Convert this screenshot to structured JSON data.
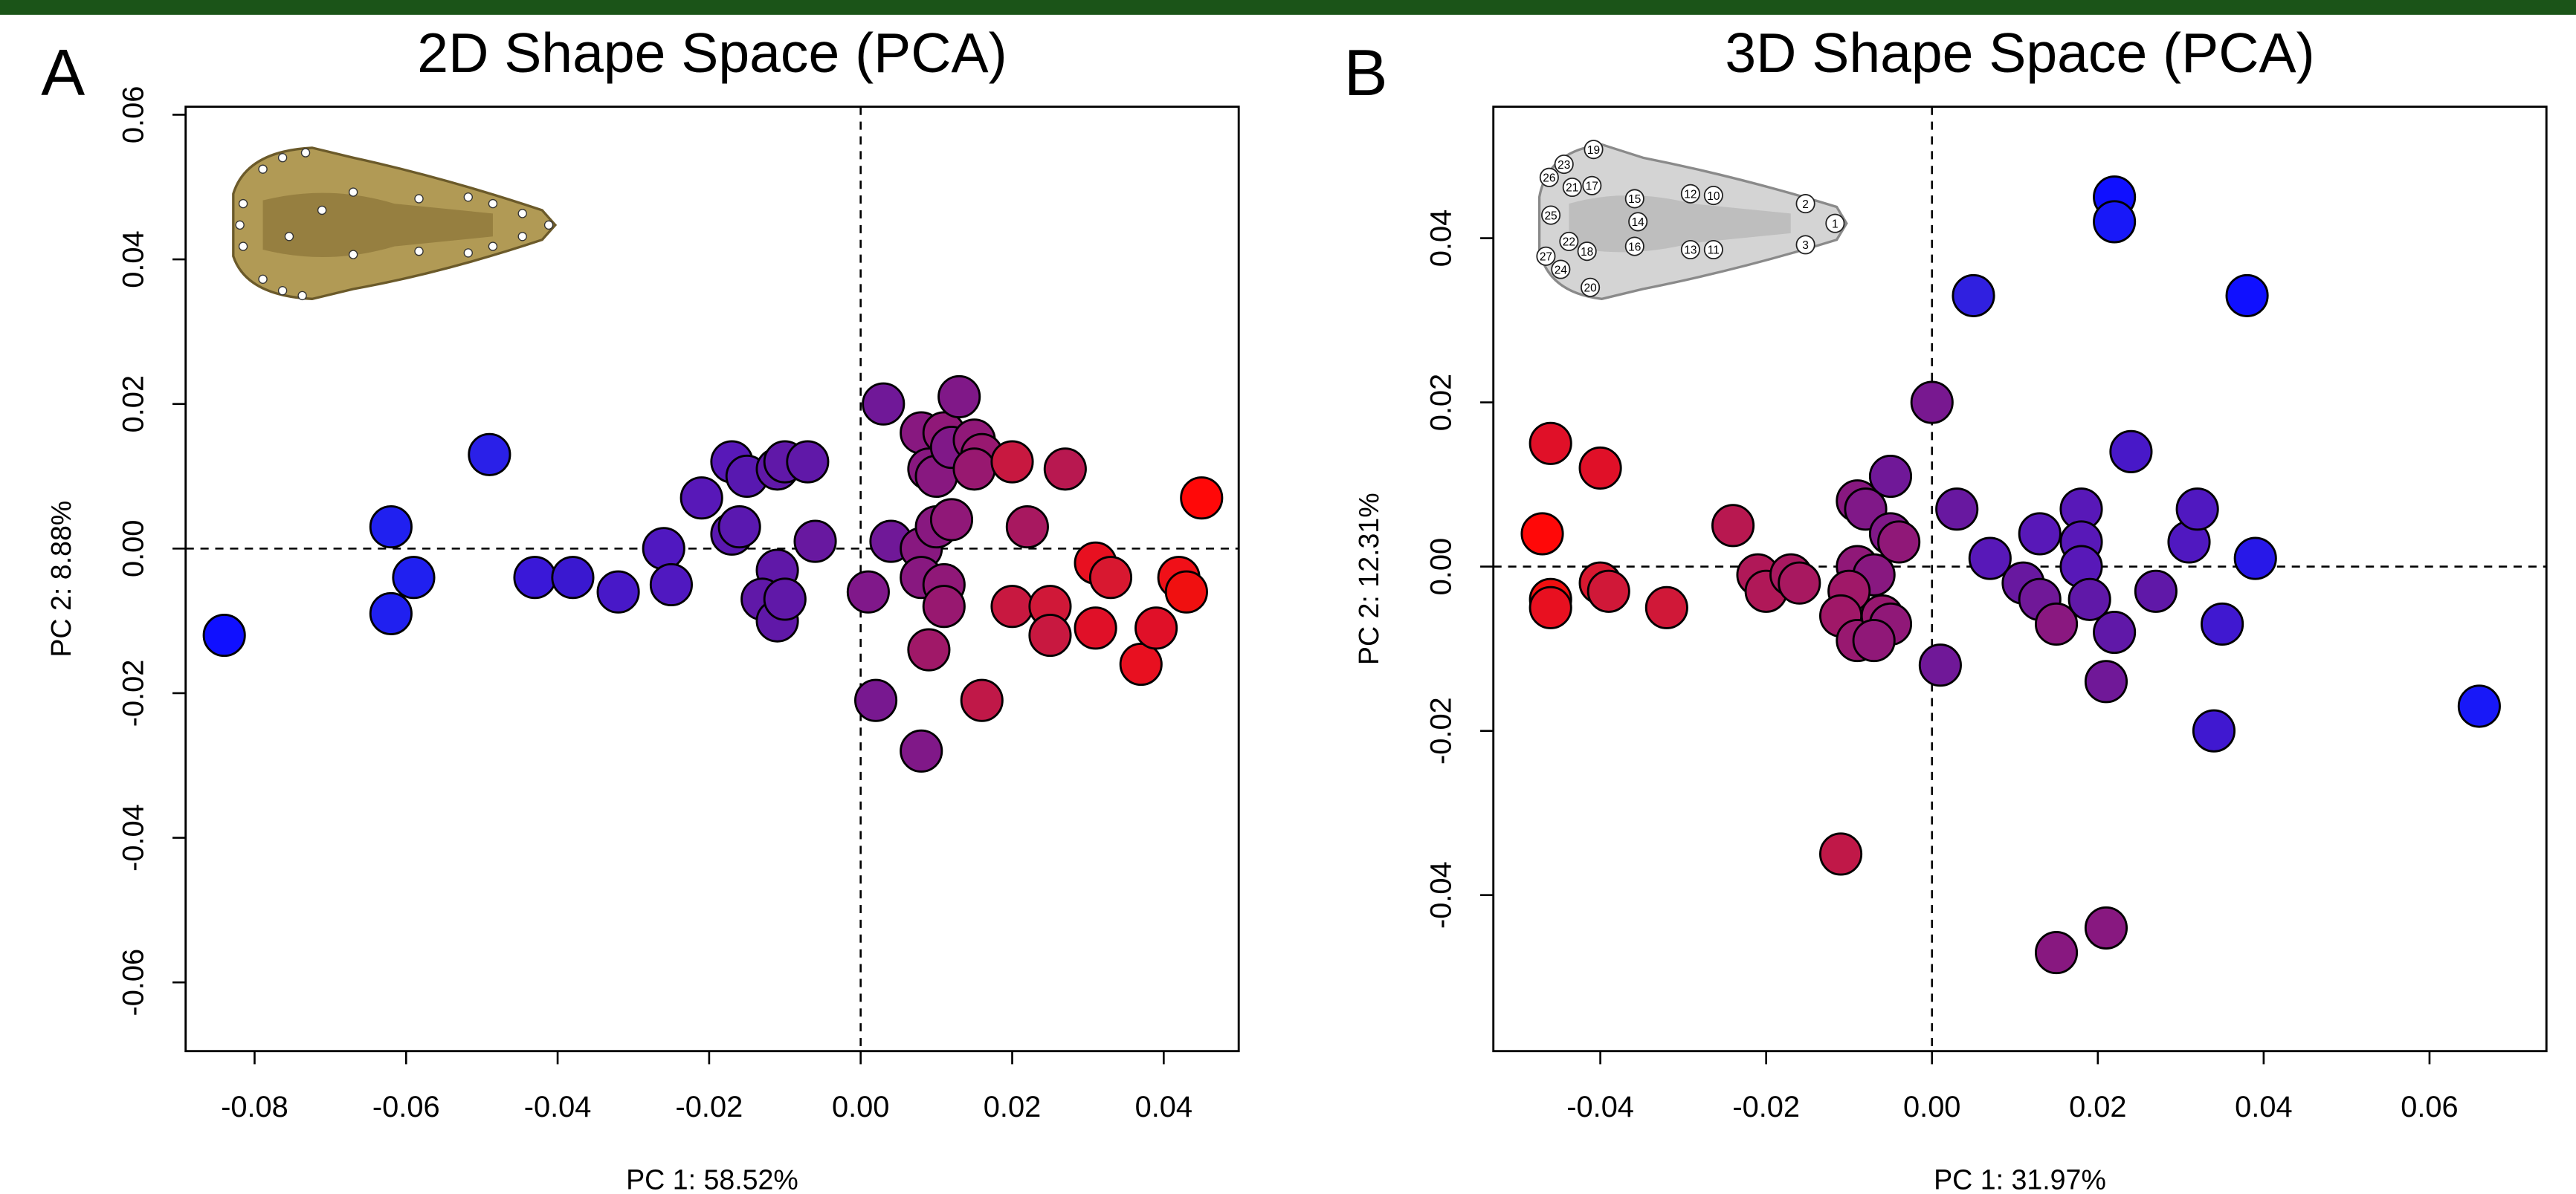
{
  "chart_data": [
    {
      "type": "scatter",
      "panel_label": "A",
      "title": "2D Shape Space (PCA)",
      "x_label": "PC 1: 58.52%",
      "y_label": "PC 2: 8.88%",
      "xlim": [
        -0.0891,
        0.0499
      ],
      "ylim": [
        -0.0695,
        0.0611
      ],
      "xticks": [
        -0.08,
        -0.06,
        -0.04,
        -0.02,
        {
          "value": 0,
          "label": "0.00"
        },
        0.02,
        0.04
      ],
      "yticks": [
        -0.06,
        -0.04,
        -0.02,
        {
          "value": 0,
          "label": "0.00"
        },
        0.02,
        0.04,
        0.06
      ],
      "reference_lines": {
        "x": 0,
        "y": 0
      },
      "series": [
        {
          "x": [
            -0.084,
            -0.062,
            -0.059,
            -0.062,
            -0.049,
            -0.043,
            -0.038,
            -0.032,
            -0.026,
            -0.025,
            -0.021,
            -0.017,
            -0.015,
            -0.017,
            -0.016,
            -0.011,
            -0.01,
            -0.007,
            -0.011,
            -0.013,
            -0.011,
            -0.01,
            -0.006,
            0.001,
            0.003,
            0.004,
            0.002,
            0.008,
            0.011,
            0.013,
            0.009,
            0.01,
            0.012,
            0.015,
            0.016,
            0.015,
            0.008,
            0.01,
            0.012,
            0.008,
            0.011,
            0.011,
            0.009,
            0.008,
            0.016,
            0.02,
            0.022,
            0.02,
            0.025,
            0.025,
            0.027,
            0.031,
            0.033,
            0.031,
            0.037,
            0.039,
            0.042,
            0.043,
            0.045
          ],
          "values": [
            -0.012,
            0.003,
            -0.004,
            -0.009,
            0.013,
            -0.004,
            -0.004,
            -0.006,
            0.0,
            -0.005,
            0.007,
            0.012,
            0.01,
            0.002,
            0.003,
            0.011,
            0.012,
            0.012,
            -0.003,
            -0.007,
            -0.01,
            -0.007,
            0.001,
            -0.006,
            0.02,
            0.001,
            -0.021,
            0.016,
            0.016,
            0.021,
            0.011,
            0.01,
            0.014,
            0.015,
            0.013,
            0.011,
            0.0,
            0.003,
            0.004,
            -0.004,
            -0.005,
            -0.008,
            -0.014,
            -0.028,
            -0.021,
            0.012,
            0.003,
            -0.008,
            -0.008,
            -0.012,
            0.011,
            -0.002,
            -0.004,
            -0.011,
            -0.016,
            -0.011,
            -0.004,
            -0.006,
            0.007
          ],
          "colors": [
            "#1010ff",
            "#2020f0",
            "#2020f0",
            "#2020f0",
            "#2a20e8",
            "#3a18d8",
            "#3a18d0",
            "#4818c8",
            "#5018c0",
            "#5018c0",
            "#5818b8",
            "#5818b8",
            "#5818b0",
            "#5a18b0",
            "#5a18b0",
            "#6018a8",
            "#6018a8",
            "#6018a8",
            "#6018a8",
            "#6018a8",
            "#6018a8",
            "#6018a8",
            "#6818a0",
            "#80188a",
            "#701898",
            "#701898",
            "#781890",
            "#881880",
            "#901878",
            "#801888",
            "#881880",
            "#881880",
            "#801888",
            "#901878",
            "#981870",
            "#981870",
            "#881880",
            "#881880",
            "#901878",
            "#881880",
            "#901878",
            "#981870",
            "#a01868",
            "#801888",
            "#c01848",
            "#c81840",
            "#a81860",
            "#c81840",
            "#d01838",
            "#c81840",
            "#b81850",
            "#e81020",
            "#d81830",
            "#e01028",
            "#e81020",
            "#e01028",
            "#f01018",
            "#f01010",
            "#ff0808"
          ]
        }
      ]
    },
    {
      "type": "scatter",
      "panel_label": "B",
      "title": "3D Shape Space (PCA)",
      "x_label": "PC 1: 31.97%",
      "y_label": "PC 2: 12.31%",
      "xlim": [
        -0.0529,
        0.0741
      ],
      "ylim": [
        -0.059,
        0.056
      ],
      "xticks": [
        -0.04,
        -0.02,
        {
          "value": 0,
          "label": "0.00"
        },
        0.02,
        0.04,
        0.06
      ],
      "yticks": [
        -0.04,
        -0.02,
        {
          "value": 0,
          "label": "0.00"
        },
        0.02,
        0.04
      ],
      "reference_lines": {
        "x": 0,
        "y": 0
      },
      "inset_landmarks": [
        "19",
        "23",
        "26",
        "21",
        "17",
        "15",
        "12",
        "10",
        "2",
        "1",
        "25",
        "14",
        "22",
        "18",
        "16",
        "13",
        "11",
        "3",
        "27",
        "24",
        "20"
      ],
      "series": [
        {
          "x": [
            -0.046,
            -0.047,
            -0.046,
            -0.046,
            -0.04,
            -0.04,
            -0.039,
            -0.032,
            -0.024,
            -0.021,
            -0.02,
            -0.017,
            -0.016,
            -0.011,
            -0.009,
            -0.008,
            -0.005,
            -0.005,
            -0.004,
            -0.009,
            -0.007,
            -0.01,
            -0.011,
            -0.009,
            -0.006,
            -0.005,
            -0.007,
            0.0,
            0.003,
            0.005,
            0.001,
            0.007,
            0.011,
            0.013,
            0.013,
            0.015,
            0.018,
            0.018,
            0.018,
            0.019,
            0.021,
            0.022,
            0.015,
            0.021,
            0.022,
            0.022,
            0.024,
            0.027,
            0.031,
            0.032,
            0.034,
            0.035,
            0.038,
            0.039,
            0.066
          ],
          "values": [
            0.015,
            0.004,
            -0.004,
            -0.005,
            0.012,
            -0.002,
            -0.003,
            -0.005,
            0.005,
            -0.001,
            -0.003,
            -0.001,
            -0.002,
            -0.035,
            0.008,
            0.007,
            0.011,
            0.004,
            0.003,
            0.0,
            -0.001,
            -0.003,
            -0.006,
            -0.009,
            -0.006,
            -0.007,
            -0.009,
            0.02,
            0.007,
            0.033,
            -0.012,
            0.001,
            -0.002,
            0.004,
            -0.004,
            -0.007,
            0.007,
            0.003,
            0.0,
            -0.004,
            -0.014,
            -0.008,
            -0.047,
            -0.044,
            0.045,
            0.042,
            0.014,
            -0.003,
            0.003,
            0.007,
            -0.02,
            -0.007,
            0.033,
            0.001,
            -0.017
          ],
          "colors": [
            "#e01028",
            "#ff0808",
            "#f01010",
            "#e81020",
            "#e01028",
            "#d81830",
            "#d01838",
            "#d01838",
            "#b81850",
            "#b01858",
            "#b01858",
            "#a81860",
            "#a81860",
            "#c01848",
            "#881880",
            "#801888",
            "#701898",
            "#801888",
            "#901878",
            "#901878",
            "#881880",
            "#a01868",
            "#a01868",
            "#981870",
            "#981870",
            "#901878",
            "#901878",
            "#781890",
            "#6818a0",
            "#3020e0",
            "#701898",
            "#5818b8",
            "#6818a0",
            "#5818b8",
            "#701898",
            "#8a1880",
            "#5818b8",
            "#5818b8",
            "#5818b8",
            "#6018a8",
            "#701898",
            "#6018a8",
            "#881880",
            "#881880",
            "#1010ff",
            "#1818f8",
            "#4818c8",
            "#6018a8",
            "#5018c0",
            "#5018c0",
            "#4018d0",
            "#4018d0",
            "#1010ff",
            "#2818e8",
            "#1818f8"
          ]
        }
      ]
    }
  ]
}
